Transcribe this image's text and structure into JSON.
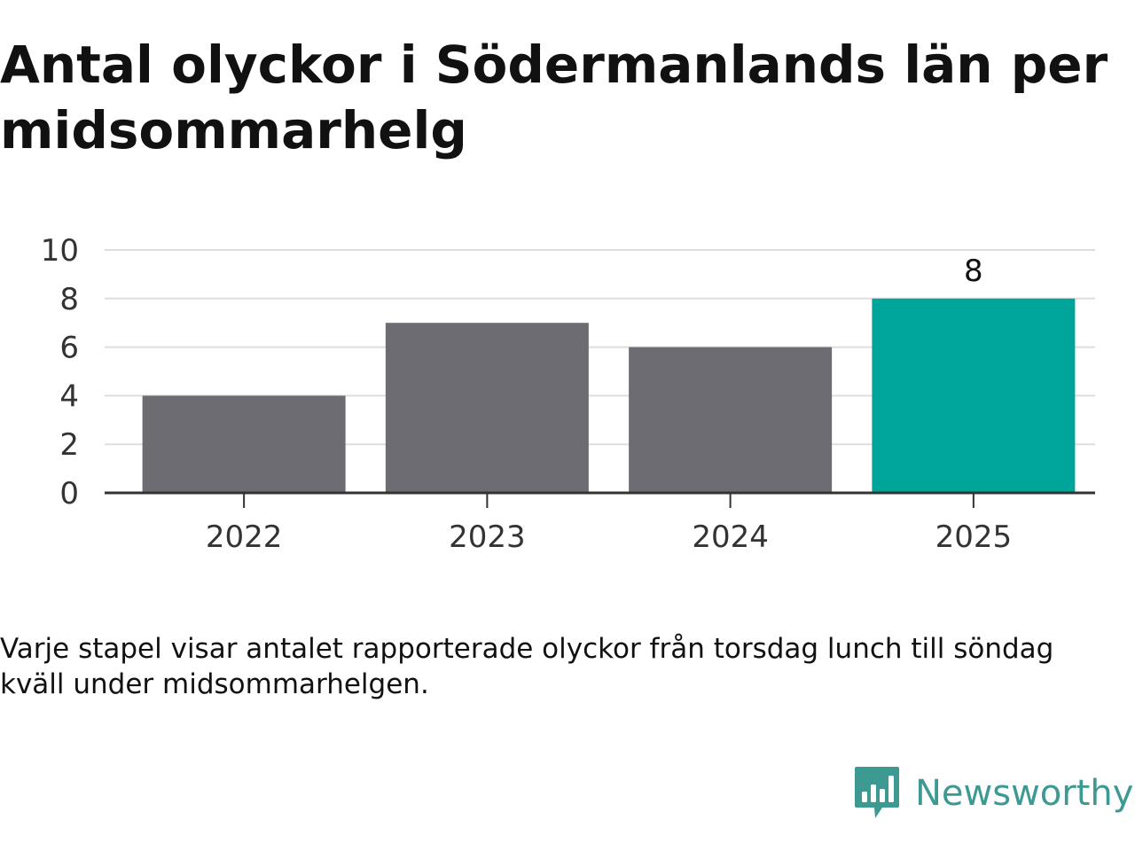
{
  "title": "Antal olyckor i Södermanlands län per midsommarhelg",
  "caption": "Varje stapel visar antalet rapporterade olyckor från torsdag lunch till söndag kväll under midsommarhelgen.",
  "brand": {
    "name": "Newsworthy",
    "icon": "newsworthy-logo-icon",
    "color": "#3d9a93"
  },
  "chart_data": {
    "type": "bar",
    "categories": [
      "2022",
      "2023",
      "2024",
      "2025"
    ],
    "values": [
      4,
      7,
      6,
      8
    ],
    "ylim": [
      0,
      10
    ],
    "yticks": [
      0,
      2,
      4,
      6,
      8,
      10
    ],
    "grid": true,
    "data_labels": [
      "",
      "",
      "",
      "8"
    ],
    "colors": [
      "#6d6c72",
      "#6d6c72",
      "#6d6c72",
      "#00a59a"
    ],
    "gridline_color": "#dddddd",
    "axis_color": "#333333"
  }
}
